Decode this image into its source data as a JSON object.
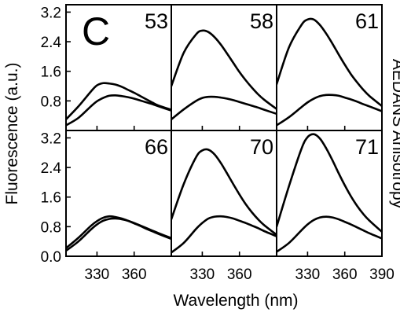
{
  "chart_data": {
    "type": "line",
    "panel_letter": "C",
    "xlabel": "Wavelength (nm)",
    "ylabel": "Fluorescence (a.u.)",
    "right_label": "AEDANS Anisotropy",
    "xlim": [
      305,
      390
    ],
    "ylim": [
      0.0,
      3.4
    ],
    "x_ticks": [
      330,
      360,
      390
    ],
    "y_ticks": [
      0.0,
      0.8,
      1.6,
      2.4,
      3.2
    ],
    "y_tick_labels": [
      "0.0",
      "0.8",
      "1.6",
      "2.4",
      "3.2"
    ],
    "grid": false,
    "layout": "2 rows x 3 columns",
    "x": [
      305,
      315,
      325,
      330,
      335,
      340,
      345,
      350,
      355,
      360,
      365,
      370,
      375,
      380,
      390
    ],
    "panels": [
      {
        "label": "53",
        "series": [
          {
            "values": [
              0.3,
              0.65,
              1.05,
              1.22,
              1.28,
              1.27,
              1.24,
              1.18,
              1.1,
              1.02,
              0.93,
              0.84,
              0.75,
              0.67,
              0.56
            ]
          },
          {
            "values": [
              0.14,
              0.34,
              0.65,
              0.79,
              0.88,
              0.94,
              0.95,
              0.93,
              0.9,
              0.86,
              0.81,
              0.76,
              0.71,
              0.65,
              0.54
            ]
          }
        ]
      },
      {
        "label": "58",
        "series": [
          {
            "values": [
              1.2,
              2.1,
              2.6,
              2.7,
              2.66,
              2.52,
              2.32,
              2.08,
              1.83,
              1.58,
              1.36,
              1.16,
              0.98,
              0.83,
              0.58
            ]
          },
          {
            "values": [
              0.3,
              0.57,
              0.8,
              0.88,
              0.91,
              0.91,
              0.89,
              0.86,
              0.82,
              0.77,
              0.72,
              0.67,
              0.62,
              0.56,
              0.45
            ]
          }
        ]
      },
      {
        "label": "61",
        "series": [
          {
            "values": [
              1.25,
              2.25,
              2.85,
              3.0,
              3.0,
              2.85,
              2.62,
              2.35,
              2.06,
              1.78,
              1.52,
              1.3,
              1.1,
              0.93,
              0.66
            ]
          },
          {
            "values": [
              0.14,
              0.36,
              0.63,
              0.76,
              0.86,
              0.93,
              0.96,
              0.96,
              0.94,
              0.89,
              0.84,
              0.78,
              0.71,
              0.65,
              0.52
            ]
          }
        ]
      },
      {
        "label": "66",
        "series": [
          {
            "values": [
              0.22,
              0.5,
              0.82,
              0.95,
              1.04,
              1.08,
              1.06,
              1.02,
              0.96,
              0.89,
              0.82,
              0.74,
              0.67,
              0.6,
              0.47
            ]
          },
          {
            "values": [
              0.15,
              0.4,
              0.72,
              0.86,
              0.96,
              1.01,
              1.02,
              1.0,
              0.96,
              0.9,
              0.83,
              0.76,
              0.69,
              0.62,
              0.49
            ]
          }
        ]
      },
      {
        "label": "70",
        "series": [
          {
            "values": [
              1.0,
              1.95,
              2.68,
              2.86,
              2.88,
              2.75,
              2.52,
              2.24,
              1.95,
              1.67,
              1.41,
              1.19,
              1.0,
              0.84,
              0.58
            ]
          },
          {
            "values": [
              0.1,
              0.36,
              0.74,
              0.9,
              1.02,
              1.07,
              1.08,
              1.06,
              1.02,
              0.96,
              0.9,
              0.83,
              0.76,
              0.68,
              0.54
            ]
          }
        ]
      },
      {
        "label": "71",
        "series": [
          {
            "values": [
              0.8,
              1.9,
              2.9,
              3.22,
              3.3,
              3.18,
              2.92,
              2.6,
              2.25,
              1.92,
              1.62,
              1.36,
              1.14,
              0.96,
              0.66
            ]
          },
          {
            "values": [
              0.12,
              0.36,
              0.7,
              0.86,
              0.98,
              1.05,
              1.07,
              1.05,
              1.0,
              0.93,
              0.86,
              0.78,
              0.7,
              0.62,
              0.48
            ]
          }
        ]
      }
    ]
  }
}
